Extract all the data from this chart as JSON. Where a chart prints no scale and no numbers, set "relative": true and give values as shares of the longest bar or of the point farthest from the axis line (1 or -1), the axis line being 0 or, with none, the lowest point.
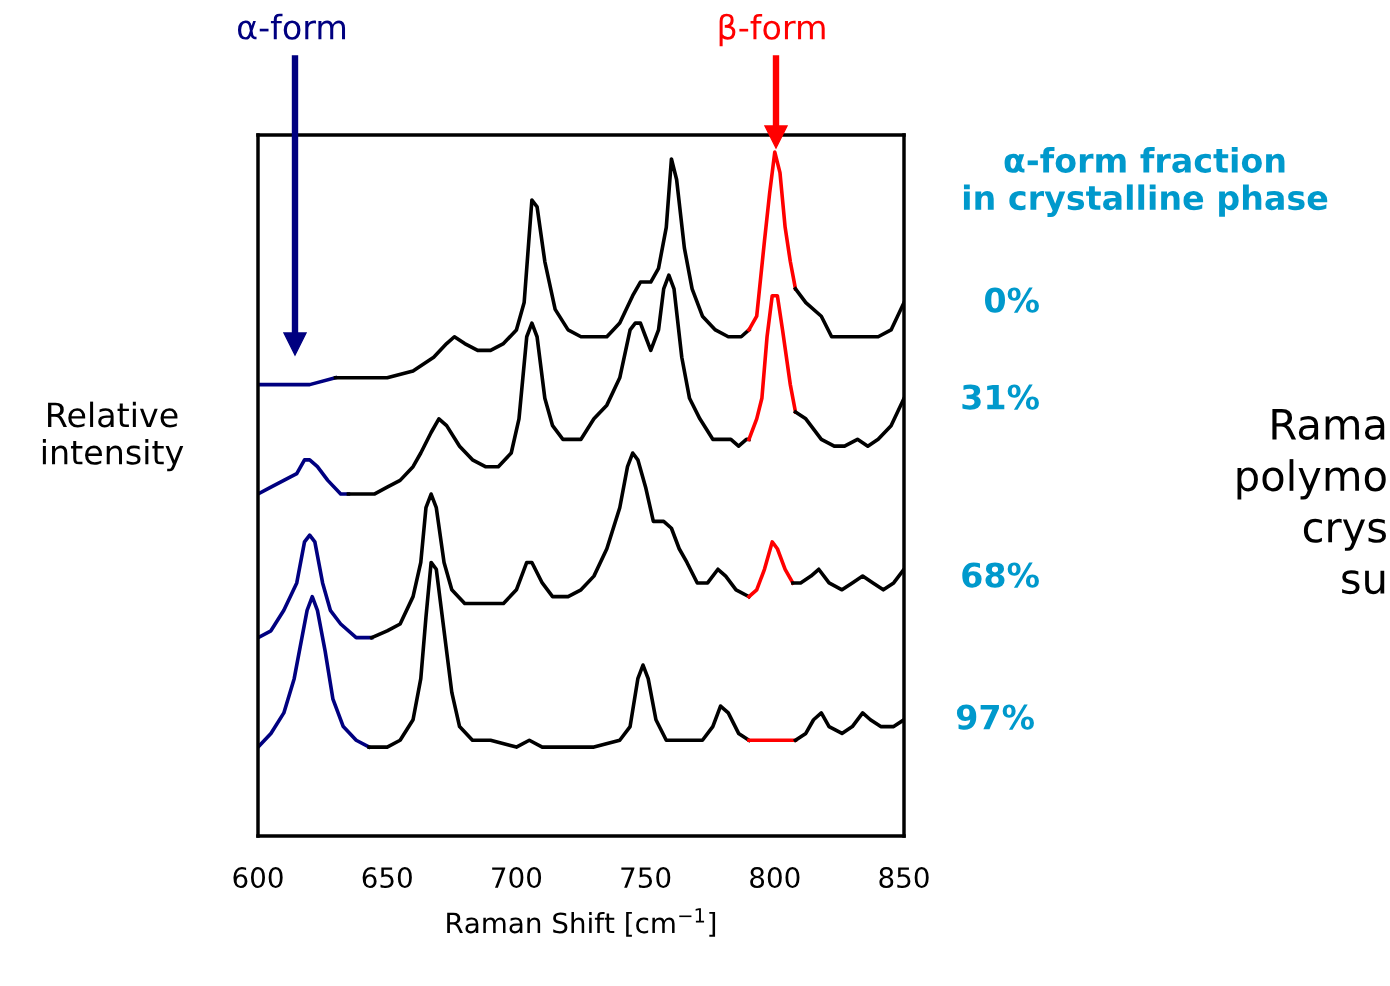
{
  "chart_data": {
    "type": "line",
    "relative": true,
    "xlabel": "Raman Shift [cm$^{−1}$]",
    "ylabel": "Relative\nintensity",
    "xlim": [
      600,
      850
    ],
    "xticks": [
      600,
      650,
      700,
      750,
      800,
      850
    ],
    "grid": false,
    "legend": false,
    "tick_labels": "x",
    "marker": "none",
    "line_style": "solid",
    "annotations": [
      "α-form",
      "β-form",
      "0%",
      "31%",
      "68%",
      "97%",
      "α-form fraction\nin crystalline phase",
      "Rama\npolymo\ncrys\nsu"
    ],
    "series": [
      {
        "color": "#000080",
        "x": [
          600,
          610,
          620,
          630
        ],
        "values": [
          0.66,
          0.66,
          0.66,
          0.67
        ]
      },
      {
        "color": "#000000",
        "x": [
          630,
          640,
          650,
          660,
          668,
          673,
          676,
          680,
          685,
          690,
          695,
          700,
          703,
          706,
          708,
          711,
          715,
          720,
          725,
          730,
          735,
          740,
          745,
          748,
          752,
          755,
          758,
          760,
          762,
          765,
          768,
          772,
          777,
          782,
          787,
          790
        ],
        "values": [
          0.67,
          0.67,
          0.67,
          0.68,
          0.7,
          0.72,
          0.73,
          0.72,
          0.71,
          0.71,
          0.72,
          0.74,
          0.78,
          0.93,
          0.92,
          0.84,
          0.77,
          0.74,
          0.73,
          0.73,
          0.73,
          0.75,
          0.79,
          0.81,
          0.81,
          0.83,
          0.89,
          0.99,
          0.96,
          0.86,
          0.8,
          0.76,
          0.74,
          0.73,
          0.73,
          0.74
        ]
      },
      {
        "color": "#ff0000",
        "x": [
          790,
          793,
          796,
          798,
          800,
          802,
          804,
          806,
          808
        ],
        "values": [
          0.74,
          0.76,
          0.87,
          0.94,
          1.0,
          0.97,
          0.89,
          0.84,
          0.8
        ]
      },
      {
        "color": "#000000",
        "x": [
          808,
          812,
          818,
          822,
          828,
          835,
          840,
          845,
          850
        ],
        "values": [
          0.8,
          0.78,
          0.76,
          0.73,
          0.73,
          0.73,
          0.73,
          0.74,
          0.78
        ]
      },
      {
        "color": "#000080",
        "x": [
          600,
          605,
          610,
          615,
          618,
          620,
          623,
          627,
          632,
          635
        ],
        "values": [
          0.5,
          0.51,
          0.52,
          0.53,
          0.55,
          0.55,
          0.54,
          0.52,
          0.5,
          0.5
        ]
      },
      {
        "color": "#000000",
        "x": [
          635,
          640,
          645,
          650,
          655,
          660,
          663,
          667,
          670,
          673,
          678,
          683,
          688,
          693,
          698,
          701,
          704,
          706,
          708,
          711,
          714,
          718,
          722,
          725,
          730,
          735,
          740,
          744,
          746,
          748,
          750,
          752,
          755,
          757,
          759,
          761,
          764,
          767,
          771,
          776,
          780,
          783,
          786,
          789,
          790
        ],
        "values": [
          0.5,
          0.5,
          0.5,
          0.51,
          0.52,
          0.54,
          0.56,
          0.59,
          0.61,
          0.6,
          0.57,
          0.55,
          0.54,
          0.54,
          0.56,
          0.61,
          0.73,
          0.75,
          0.73,
          0.64,
          0.6,
          0.58,
          0.58,
          0.58,
          0.61,
          0.63,
          0.67,
          0.74,
          0.75,
          0.75,
          0.73,
          0.71,
          0.74,
          0.8,
          0.82,
          0.8,
          0.7,
          0.64,
          0.61,
          0.58,
          0.58,
          0.58,
          0.57,
          0.58,
          0.58
        ]
      },
      {
        "color": "#ff0000",
        "x": [
          790,
          793,
          795,
          797,
          799,
          801,
          803,
          806,
          808
        ],
        "values": [
          0.58,
          0.61,
          0.64,
          0.73,
          0.79,
          0.79,
          0.74,
          0.66,
          0.62
        ]
      },
      {
        "color": "#000000",
        "x": [
          808,
          812,
          818,
          823,
          827,
          832,
          836,
          840,
          845,
          850
        ],
        "values": [
          0.62,
          0.61,
          0.58,
          0.57,
          0.57,
          0.58,
          0.57,
          0.58,
          0.6,
          0.64
        ]
      },
      {
        "color": "#000080",
        "x": [
          600,
          605,
          610,
          615,
          618,
          620,
          622,
          625,
          628,
          632,
          638,
          644
        ],
        "values": [
          0.29,
          0.3,
          0.33,
          0.37,
          0.43,
          0.44,
          0.43,
          0.37,
          0.33,
          0.31,
          0.29,
          0.29
        ]
      },
      {
        "color": "#000000",
        "x": [
          644,
          650,
          655,
          660,
          663,
          665,
          667,
          669,
          672,
          675,
          680,
          688,
          695,
          700,
          704,
          706,
          710,
          714,
          720,
          725,
          730,
          735,
          740,
          743,
          745,
          747,
          750,
          753,
          757,
          760,
          763,
          766,
          770,
          774,
          778,
          781,
          785,
          790
        ],
        "values": [
          0.29,
          0.3,
          0.31,
          0.35,
          0.4,
          0.48,
          0.5,
          0.48,
          0.4,
          0.36,
          0.34,
          0.34,
          0.34,
          0.36,
          0.4,
          0.4,
          0.37,
          0.35,
          0.35,
          0.36,
          0.38,
          0.42,
          0.48,
          0.54,
          0.56,
          0.55,
          0.51,
          0.46,
          0.46,
          0.45,
          0.42,
          0.4,
          0.37,
          0.37,
          0.39,
          0.38,
          0.36,
          0.35
        ]
      },
      {
        "color": "#ff0000",
        "x": [
          790,
          793,
          796,
          799,
          801,
          804,
          807
        ],
        "values": [
          0.35,
          0.36,
          0.39,
          0.43,
          0.42,
          0.39,
          0.37
        ]
      },
      {
        "color": "#000000",
        "x": [
          807,
          810,
          814,
          817,
          821,
          826,
          830,
          834,
          838,
          842,
          846,
          850
        ],
        "values": [
          0.37,
          0.37,
          0.38,
          0.39,
          0.37,
          0.36,
          0.37,
          0.38,
          0.37,
          0.36,
          0.37,
          0.39
        ]
      },
      {
        "color": "#000080",
        "x": [
          600,
          605,
          610,
          614,
          617,
          619,
          621,
          623,
          626,
          629,
          633,
          638,
          643
        ],
        "values": [
          0.13,
          0.15,
          0.18,
          0.23,
          0.29,
          0.33,
          0.35,
          0.33,
          0.27,
          0.2,
          0.16,
          0.14,
          0.13
        ]
      },
      {
        "color": "#000000",
        "x": [
          643,
          650,
          655,
          660,
          663,
          665,
          667,
          669,
          672,
          675,
          678,
          683,
          690,
          700,
          705,
          710,
          720,
          730,
          740,
          744,
          747,
          749,
          751,
          754,
          758,
          765,
          772,
          776,
          779,
          782,
          786,
          790
        ],
        "values": [
          0.13,
          0.13,
          0.14,
          0.17,
          0.23,
          0.32,
          0.4,
          0.39,
          0.3,
          0.21,
          0.16,
          0.14,
          0.14,
          0.13,
          0.14,
          0.13,
          0.13,
          0.13,
          0.14,
          0.16,
          0.23,
          0.25,
          0.23,
          0.17,
          0.14,
          0.14,
          0.14,
          0.16,
          0.19,
          0.18,
          0.15,
          0.14
        ]
      },
      {
        "color": "#ff0000",
        "x": [
          790,
          800,
          808
        ],
        "values": [
          0.14,
          0.14,
          0.14
        ]
      },
      {
        "color": "#000000",
        "x": [
          808,
          812,
          815,
          818,
          821,
          826,
          830,
          834,
          837,
          841,
          846,
          850
        ],
        "values": [
          0.14,
          0.15,
          0.17,
          0.18,
          0.16,
          0.15,
          0.16,
          0.18,
          0.17,
          0.16,
          0.16,
          0.17
        ]
      }
    ]
  }
}
